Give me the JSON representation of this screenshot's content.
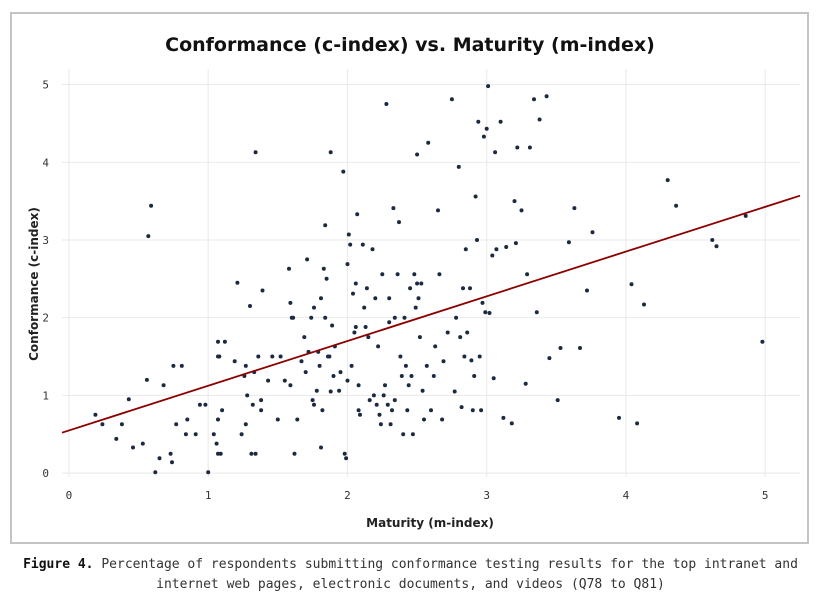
{
  "chart_data": {
    "type": "scatter",
    "title": "Conformance (c-index) vs. Maturity (m-index)",
    "xlabel": "Maturity (m-index)",
    "ylabel": "Conformance (c-index)",
    "xlim": [
      -0.05,
      5.25
    ],
    "ylim": [
      -0.05,
      5.2
    ],
    "xticks": [
      0,
      1,
      2,
      3,
      4,
      5
    ],
    "yticks": [
      0,
      1,
      2,
      3,
      4,
      5
    ],
    "grid": true,
    "colors": {
      "points": "#1b2a41",
      "trend": "#8b0000",
      "grid": "#e9e9e9"
    },
    "trendline": {
      "x": [
        -0.05,
        5.25
      ],
      "y": [
        0.52,
        3.57
      ]
    },
    "points": [
      [
        0.19,
        0.75
      ],
      [
        0.24,
        0.63
      ],
      [
        0.34,
        0.44
      ],
      [
        0.38,
        0.63
      ],
      [
        0.43,
        0.95
      ],
      [
        0.46,
        0.33
      ],
      [
        0.53,
        0.38
      ],
      [
        0.56,
        1.2
      ],
      [
        0.57,
        3.05
      ],
      [
        0.59,
        3.44
      ],
      [
        0.62,
        0.01
      ],
      [
        0.65,
        0.19
      ],
      [
        0.68,
        1.13
      ],
      [
        0.73,
        0.25
      ],
      [
        0.74,
        0.14
      ],
      [
        0.75,
        1.38
      ],
      [
        0.77,
        0.63
      ],
      [
        0.81,
        1.38
      ],
      [
        0.84,
        0.5
      ],
      [
        0.85,
        0.69
      ],
      [
        0.91,
        0.5
      ],
      [
        0.94,
        0.88
      ],
      [
        0.98,
        0.88
      ],
      [
        1.0,
        0.01
      ],
      [
        1.04,
        0.5
      ],
      [
        1.06,
        0.38
      ],
      [
        1.07,
        0.25
      ],
      [
        1.07,
        0.69
      ],
      [
        1.07,
        1.5
      ],
      [
        1.07,
        1.69
      ],
      [
        1.08,
        1.5
      ],
      [
        1.09,
        0.25
      ],
      [
        1.1,
        0.81
      ],
      [
        1.12,
        1.69
      ],
      [
        1.19,
        1.44
      ],
      [
        1.21,
        2.45
      ],
      [
        1.24,
        0.5
      ],
      [
        1.26,
        1.25
      ],
      [
        1.27,
        1.38
      ],
      [
        1.27,
        0.63
      ],
      [
        1.28,
        1.0
      ],
      [
        1.3,
        2.15
      ],
      [
        1.31,
        0.25
      ],
      [
        1.32,
        0.88
      ],
      [
        1.33,
        1.3
      ],
      [
        1.34,
        0.25
      ],
      [
        1.34,
        4.13
      ],
      [
        1.36,
        1.5
      ],
      [
        1.38,
        0.94
      ],
      [
        1.38,
        0.81
      ],
      [
        1.39,
        2.35
      ],
      [
        1.43,
        1.19
      ],
      [
        1.46,
        1.5
      ],
      [
        1.5,
        0.69
      ],
      [
        1.52,
        1.5
      ],
      [
        1.55,
        1.19
      ],
      [
        1.58,
        2.63
      ],
      [
        1.59,
        1.13
      ],
      [
        1.59,
        2.19
      ],
      [
        1.6,
        2.0
      ],
      [
        1.61,
        2.0
      ],
      [
        1.62,
        0.25
      ],
      [
        1.64,
        0.69
      ],
      [
        1.67,
        1.44
      ],
      [
        1.69,
        1.75
      ],
      [
        1.7,
        1.3
      ],
      [
        1.71,
        2.75
      ],
      [
        1.72,
        1.56
      ],
      [
        1.74,
        2.0
      ],
      [
        1.75,
        0.94
      ],
      [
        1.76,
        0.88
      ],
      [
        1.76,
        2.13
      ],
      [
        1.78,
        1.06
      ],
      [
        1.79,
        1.56
      ],
      [
        1.8,
        1.38
      ],
      [
        1.81,
        2.25
      ],
      [
        1.81,
        0.33
      ],
      [
        1.82,
        0.81
      ],
      [
        1.83,
        2.63
      ],
      [
        1.84,
        3.19
      ],
      [
        1.84,
        2.0
      ],
      [
        1.85,
        2.5
      ],
      [
        1.86,
        1.5
      ],
      [
        1.87,
        1.5
      ],
      [
        1.88,
        1.05
      ],
      [
        1.88,
        4.13
      ],
      [
        1.89,
        1.9
      ],
      [
        1.9,
        1.25
      ],
      [
        1.91,
        1.63
      ],
      [
        1.94,
        1.06
      ],
      [
        1.95,
        1.3
      ],
      [
        1.97,
        3.88
      ],
      [
        1.98,
        0.25
      ],
      [
        1.99,
        0.19
      ],
      [
        2.0,
        2.69
      ],
      [
        2.0,
        1.19
      ],
      [
        2.01,
        3.07
      ],
      [
        2.02,
        2.94
      ],
      [
        2.03,
        1.38
      ],
      [
        2.04,
        2.31
      ],
      [
        2.05,
        1.81
      ],
      [
        2.06,
        1.88
      ],
      [
        2.06,
        2.44
      ],
      [
        2.07,
        3.33
      ],
      [
        2.08,
        1.13
      ],
      [
        2.08,
        0.81
      ],
      [
        2.09,
        0.75
      ],
      [
        2.11,
        2.94
      ],
      [
        2.12,
        2.13
      ],
      [
        2.13,
        1.88
      ],
      [
        2.14,
        2.38
      ],
      [
        2.15,
        1.75
      ],
      [
        2.16,
        0.94
      ],
      [
        2.18,
        2.88
      ],
      [
        2.19,
        1.0
      ],
      [
        2.2,
        2.25
      ],
      [
        2.21,
        0.88
      ],
      [
        2.22,
        1.63
      ],
      [
        2.23,
        0.75
      ],
      [
        2.24,
        0.63
      ],
      [
        2.25,
        2.56
      ],
      [
        2.26,
        1.0
      ],
      [
        2.27,
        1.13
      ],
      [
        2.28,
        4.75
      ],
      [
        2.29,
        0.88
      ],
      [
        2.3,
        2.25
      ],
      [
        2.3,
        1.94
      ],
      [
        2.31,
        0.63
      ],
      [
        2.32,
        0.81
      ],
      [
        2.33,
        3.41
      ],
      [
        2.34,
        2.0
      ],
      [
        2.34,
        0.94
      ],
      [
        2.36,
        2.56
      ],
      [
        2.37,
        3.23
      ],
      [
        2.38,
        1.5
      ],
      [
        2.39,
        1.25
      ],
      [
        2.4,
        0.5
      ],
      [
        2.41,
        2.0
      ],
      [
        2.42,
        1.38
      ],
      [
        2.43,
        0.81
      ],
      [
        2.44,
        1.13
      ],
      [
        2.45,
        2.38
      ],
      [
        2.46,
        1.25
      ],
      [
        2.47,
        0.5
      ],
      [
        2.48,
        2.56
      ],
      [
        2.49,
        2.13
      ],
      [
        2.5,
        2.44
      ],
      [
        2.5,
        4.1
      ],
      [
        2.51,
        2.25
      ],
      [
        2.52,
        1.75
      ],
      [
        2.53,
        2.44
      ],
      [
        2.54,
        1.06
      ],
      [
        2.55,
        0.69
      ],
      [
        2.57,
        1.38
      ],
      [
        2.58,
        4.25
      ],
      [
        2.6,
        0.81
      ],
      [
        2.62,
        1.25
      ],
      [
        2.63,
        1.63
      ],
      [
        2.65,
        3.38
      ],
      [
        2.66,
        2.56
      ],
      [
        2.68,
        0.69
      ],
      [
        2.69,
        1.44
      ],
      [
        2.72,
        1.81
      ],
      [
        2.75,
        4.81
      ],
      [
        2.77,
        1.05
      ],
      [
        2.78,
        2.0
      ],
      [
        2.8,
        3.94
      ],
      [
        2.81,
        1.75
      ],
      [
        2.82,
        0.85
      ],
      [
        2.83,
        2.38
      ],
      [
        2.84,
        1.5
      ],
      [
        2.85,
        2.88
      ],
      [
        2.86,
        1.81
      ],
      [
        2.88,
        2.38
      ],
      [
        2.89,
        1.45
      ],
      [
        2.9,
        0.81
      ],
      [
        2.91,
        1.25
      ],
      [
        2.92,
        3.56
      ],
      [
        2.93,
        3.0
      ],
      [
        2.94,
        4.52
      ],
      [
        2.95,
        1.5
      ],
      [
        2.96,
        0.81
      ],
      [
        2.97,
        2.19
      ],
      [
        2.98,
        4.33
      ],
      [
        2.99,
        2.07
      ],
      [
        3.0,
        4.43
      ],
      [
        3.01,
        4.98
      ],
      [
        3.02,
        2.06
      ],
      [
        3.04,
        2.8
      ],
      [
        3.05,
        1.22
      ],
      [
        3.06,
        4.13
      ],
      [
        3.07,
        2.88
      ],
      [
        3.1,
        4.52
      ],
      [
        3.12,
        0.71
      ],
      [
        3.14,
        2.91
      ],
      [
        3.18,
        0.64
      ],
      [
        3.2,
        3.5
      ],
      [
        3.21,
        2.96
      ],
      [
        3.22,
        4.19
      ],
      [
        3.25,
        3.38
      ],
      [
        3.28,
        1.15
      ],
      [
        3.29,
        2.56
      ],
      [
        3.31,
        4.19
      ],
      [
        3.34,
        4.81
      ],
      [
        3.36,
        2.07
      ],
      [
        3.38,
        4.55
      ],
      [
        3.43,
        4.85
      ],
      [
        3.45,
        1.48
      ],
      [
        3.51,
        0.94
      ],
      [
        3.53,
        1.61
      ],
      [
        3.59,
        2.97
      ],
      [
        3.63,
        3.41
      ],
      [
        3.67,
        1.61
      ],
      [
        3.72,
        2.35
      ],
      [
        3.76,
        3.1
      ],
      [
        3.95,
        0.71
      ],
      [
        4.04,
        2.43
      ],
      [
        4.08,
        0.64
      ],
      [
        4.13,
        2.17
      ],
      [
        4.3,
        3.77
      ],
      [
        4.36,
        3.44
      ],
      [
        4.62,
        3.0
      ],
      [
        4.65,
        2.92
      ],
      [
        4.86,
        3.31
      ],
      [
        4.98,
        1.69
      ]
    ]
  },
  "caption": {
    "label": "Figure 4.",
    "text": " Percentage of respondents submitting conformance testing results for the top intranet and internet web pages, electronic documents, and videos (Q78 to Q81)"
  }
}
